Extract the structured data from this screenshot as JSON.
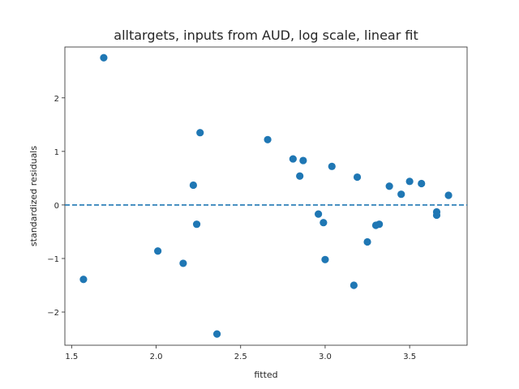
{
  "chart_data": {
    "type": "scatter",
    "title": "alltargets, inputs from AUD, log scale, linear fit",
    "xlabel": "fitted",
    "ylabel": "standardized residuals",
    "xlim": [
      1.46,
      3.84
    ],
    "ylim": [
      -2.62,
      2.95
    ],
    "xticks": [
      1.5,
      2.0,
      2.5,
      3.0,
      3.5
    ],
    "xtick_labels": [
      "1.5",
      "2.0",
      "2.5",
      "3.0",
      "3.5"
    ],
    "yticks": [
      -2,
      -1,
      0,
      1,
      2
    ],
    "ytick_labels": [
      "−2",
      "−1",
      "0",
      "1",
      "2"
    ],
    "grid": false,
    "reference_line": {
      "y": 0,
      "style": "dashed"
    },
    "marker_color": "#1f77b4",
    "points": [
      {
        "x": 1.57,
        "y": -1.39
      },
      {
        "x": 1.69,
        "y": 2.75
      },
      {
        "x": 2.01,
        "y": -0.86
      },
      {
        "x": 2.16,
        "y": -1.09
      },
      {
        "x": 2.22,
        "y": 0.37
      },
      {
        "x": 2.24,
        "y": -0.36
      },
      {
        "x": 2.26,
        "y": 1.35
      },
      {
        "x": 2.36,
        "y": -2.41
      },
      {
        "x": 2.66,
        "y": 1.22
      },
      {
        "x": 2.81,
        "y": 0.86
      },
      {
        "x": 2.85,
        "y": 0.54
      },
      {
        "x": 2.87,
        "y": 0.83
      },
      {
        "x": 2.96,
        "y": -0.17
      },
      {
        "x": 2.99,
        "y": -0.33
      },
      {
        "x": 3.0,
        "y": -1.02
      },
      {
        "x": 3.04,
        "y": 0.72
      },
      {
        "x": 3.17,
        "y": -1.5
      },
      {
        "x": 3.19,
        "y": 0.52
      },
      {
        "x": 3.25,
        "y": -0.69
      },
      {
        "x": 3.3,
        "y": -0.38
      },
      {
        "x": 3.32,
        "y": -0.36
      },
      {
        "x": 3.38,
        "y": 0.35
      },
      {
        "x": 3.45,
        "y": 0.2
      },
      {
        "x": 3.5,
        "y": 0.44
      },
      {
        "x": 3.57,
        "y": 0.4
      },
      {
        "x": 3.66,
        "y": -0.13
      },
      {
        "x": 3.66,
        "y": -0.19
      },
      {
        "x": 3.73,
        "y": 0.18
      }
    ]
  }
}
